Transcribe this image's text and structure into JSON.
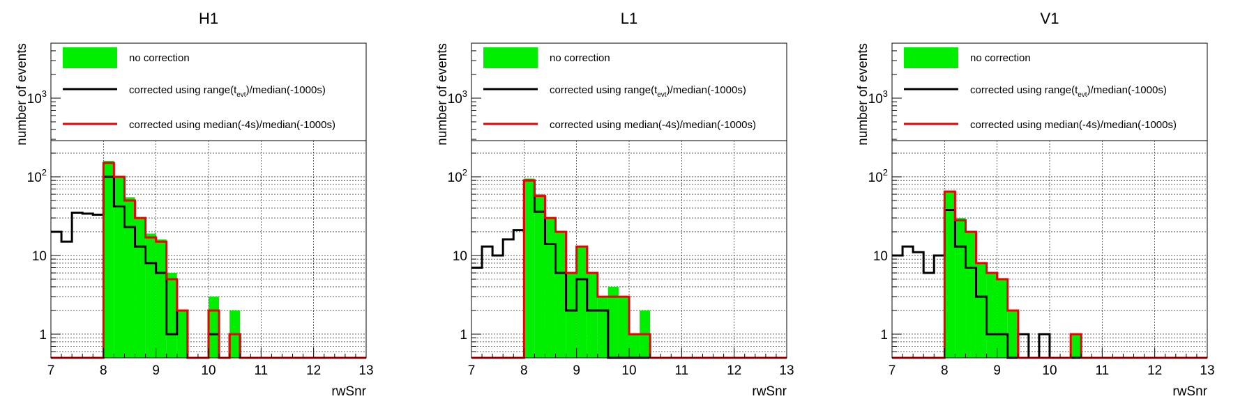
{
  "chart_data": [
    {
      "type": "histogram",
      "title": "H1",
      "xlabel": "rwSnr",
      "ylabel": "number of events",
      "xlim": [
        7,
        13
      ],
      "ylim": [
        0.5,
        5000
      ],
      "yscale": "log",
      "grid": true,
      "legend_placement": "top",
      "bin_width": 0.2,
      "x_ticks": [
        "7",
        "8",
        "9",
        "10",
        "11",
        "12",
        "13"
      ],
      "y_ticks": [
        {
          "value": 1,
          "label": "1"
        },
        {
          "value": 10,
          "label": "10"
        },
        {
          "value": 100,
          "base": "10",
          "exp": "2"
        },
        {
          "value": 1000,
          "base": "10",
          "exp": "3"
        }
      ],
      "series": [
        {
          "name": "no correction",
          "style": "fill",
          "color": "#00ee00",
          "bins": [
            [
              8.0,
              160
            ],
            [
              8.2,
              100
            ],
            [
              8.4,
              55
            ],
            [
              8.6,
              30
            ],
            [
              8.8,
              19
            ],
            [
              9.0,
              16
            ],
            [
              9.2,
              6
            ],
            [
              9.4,
              2
            ],
            [
              10.0,
              3
            ],
            [
              10.4,
              2
            ]
          ]
        },
        {
          "name": "corrected using range(t_evt)/median(-1000s)",
          "style": "line",
          "color": "#000000",
          "bins": [
            [
              7.0,
              20
            ],
            [
              7.2,
              15
            ],
            [
              7.4,
              35
            ],
            [
              7.6,
              34
            ],
            [
              7.8,
              33
            ],
            [
              8.0,
              100
            ],
            [
              8.2,
              42
            ],
            [
              8.4,
              23
            ],
            [
              8.6,
              13
            ],
            [
              8.8,
              8
            ],
            [
              9.0,
              6
            ],
            [
              9.2,
              1
            ],
            [
              9.4,
              2
            ],
            [
              10.0,
              1
            ],
            [
              10.4,
              1
            ]
          ]
        },
        {
          "name": "corrected using median(-4s)/median(-1000s)",
          "style": "line",
          "color": "#ee0000",
          "bins": [
            [
              8.0,
              150
            ],
            [
              8.2,
              100
            ],
            [
              8.4,
              50
            ],
            [
              8.6,
              30
            ],
            [
              8.8,
              17
            ],
            [
              9.0,
              15
            ],
            [
              9.2,
              5
            ],
            [
              9.4,
              2
            ],
            [
              10.0,
              2
            ],
            [
              10.4,
              1
            ]
          ]
        }
      ]
    },
    {
      "type": "histogram",
      "title": "L1",
      "xlabel": "rwSnr",
      "ylabel": "number of events",
      "xlim": [
        7,
        13
      ],
      "ylim": [
        0.5,
        5000
      ],
      "yscale": "log",
      "grid": true,
      "legend_placement": "top",
      "bin_width": 0.2,
      "x_ticks": [
        "7",
        "8",
        "9",
        "10",
        "11",
        "12",
        "13"
      ],
      "y_ticks": [
        {
          "value": 1,
          "label": "1"
        },
        {
          "value": 10,
          "label": "10"
        },
        {
          "value": 100,
          "base": "10",
          "exp": "2"
        },
        {
          "value": 1000,
          "base": "10",
          "exp": "3"
        }
      ],
      "series": [
        {
          "name": "no correction",
          "style": "fill",
          "color": "#00ee00",
          "bins": [
            [
              8.0,
              95
            ],
            [
              8.2,
              60
            ],
            [
              8.4,
              30
            ],
            [
              8.6,
              20
            ],
            [
              8.8,
              6
            ],
            [
              9.0,
              13
            ],
            [
              9.2,
              6
            ],
            [
              9.4,
              3
            ],
            [
              9.6,
              4
            ],
            [
              9.8,
              3
            ],
            [
              10.0,
              1
            ],
            [
              10.2,
              2
            ]
          ]
        },
        {
          "name": "corrected using range(t_evt)/median(-1000s)",
          "style": "line",
          "color": "#000000",
          "bins": [
            [
              7.0,
              7
            ],
            [
              7.2,
              13
            ],
            [
              7.4,
              10
            ],
            [
              7.6,
              16
            ],
            [
              7.8,
              21
            ],
            [
              8.0,
              90
            ],
            [
              8.2,
              36
            ],
            [
              8.4,
              14
            ],
            [
              8.6,
              6
            ],
            [
              8.8,
              2
            ],
            [
              9.0,
              5
            ],
            [
              9.2,
              2
            ],
            [
              9.4,
              2
            ],
            [
              9.6,
              0.5
            ],
            [
              9.8,
              0.5
            ],
            [
              10.0,
              0.5
            ],
            [
              10.2,
              0.5
            ]
          ]
        },
        {
          "name": "corrected using median(-4s)/median(-1000s)",
          "style": "line",
          "color": "#ee0000",
          "bins": [
            [
              8.0,
              90
            ],
            [
              8.2,
              57
            ],
            [
              8.4,
              30
            ],
            [
              8.6,
              20
            ],
            [
              8.8,
              6
            ],
            [
              9.0,
              13
            ],
            [
              9.2,
              6
            ],
            [
              9.4,
              3
            ],
            [
              9.6,
              3
            ],
            [
              9.8,
              3
            ],
            [
              10.0,
              1
            ],
            [
              10.2,
              1
            ]
          ]
        }
      ]
    },
    {
      "type": "histogram",
      "title": "V1",
      "xlabel": "rwSnr",
      "ylabel": "number of events",
      "xlim": [
        7,
        13
      ],
      "ylim": [
        0.5,
        5000
      ],
      "yscale": "log",
      "grid": true,
      "legend_placement": "top",
      "bin_width": 0.2,
      "x_ticks": [
        "7",
        "8",
        "9",
        "10",
        "11",
        "12",
        "13"
      ],
      "y_ticks": [
        {
          "value": 1,
          "label": "1"
        },
        {
          "value": 10,
          "label": "10"
        },
        {
          "value": 100,
          "base": "10",
          "exp": "2"
        },
        {
          "value": 1000,
          "base": "10",
          "exp": "3"
        }
      ],
      "series": [
        {
          "name": "no correction",
          "style": "fill",
          "color": "#00ee00",
          "bins": [
            [
              8.0,
              65
            ],
            [
              8.2,
              30
            ],
            [
              8.4,
              20
            ],
            [
              8.6,
              8
            ],
            [
              8.8,
              6
            ],
            [
              9.0,
              5
            ],
            [
              9.2,
              2
            ],
            [
              10.4,
              1
            ]
          ]
        },
        {
          "name": "corrected using range(t_evt)/median(-1000s)",
          "style": "line",
          "color": "#000000",
          "bins": [
            [
              7.0,
              10
            ],
            [
              7.2,
              13
            ],
            [
              7.4,
              11
            ],
            [
              7.6,
              6
            ],
            [
              7.8,
              10
            ],
            [
              8.0,
              38
            ],
            [
              8.2,
              13
            ],
            [
              8.4,
              7
            ],
            [
              8.6,
              3
            ],
            [
              8.8,
              1
            ],
            [
              9.0,
              1
            ],
            [
              9.2,
              0.5
            ],
            [
              9.4,
              1
            ],
            [
              9.6,
              0.5
            ],
            [
              9.8,
              1
            ]
          ]
        },
        {
          "name": "corrected using median(-4s)/median(-1000s)",
          "style": "line",
          "color": "#ee0000",
          "bins": [
            [
              8.0,
              65
            ],
            [
              8.2,
              28
            ],
            [
              8.4,
              20
            ],
            [
              8.6,
              8
            ],
            [
              8.8,
              6
            ],
            [
              9.0,
              5
            ],
            [
              9.2,
              2
            ],
            [
              10.4,
              1
            ]
          ]
        }
      ]
    }
  ]
}
